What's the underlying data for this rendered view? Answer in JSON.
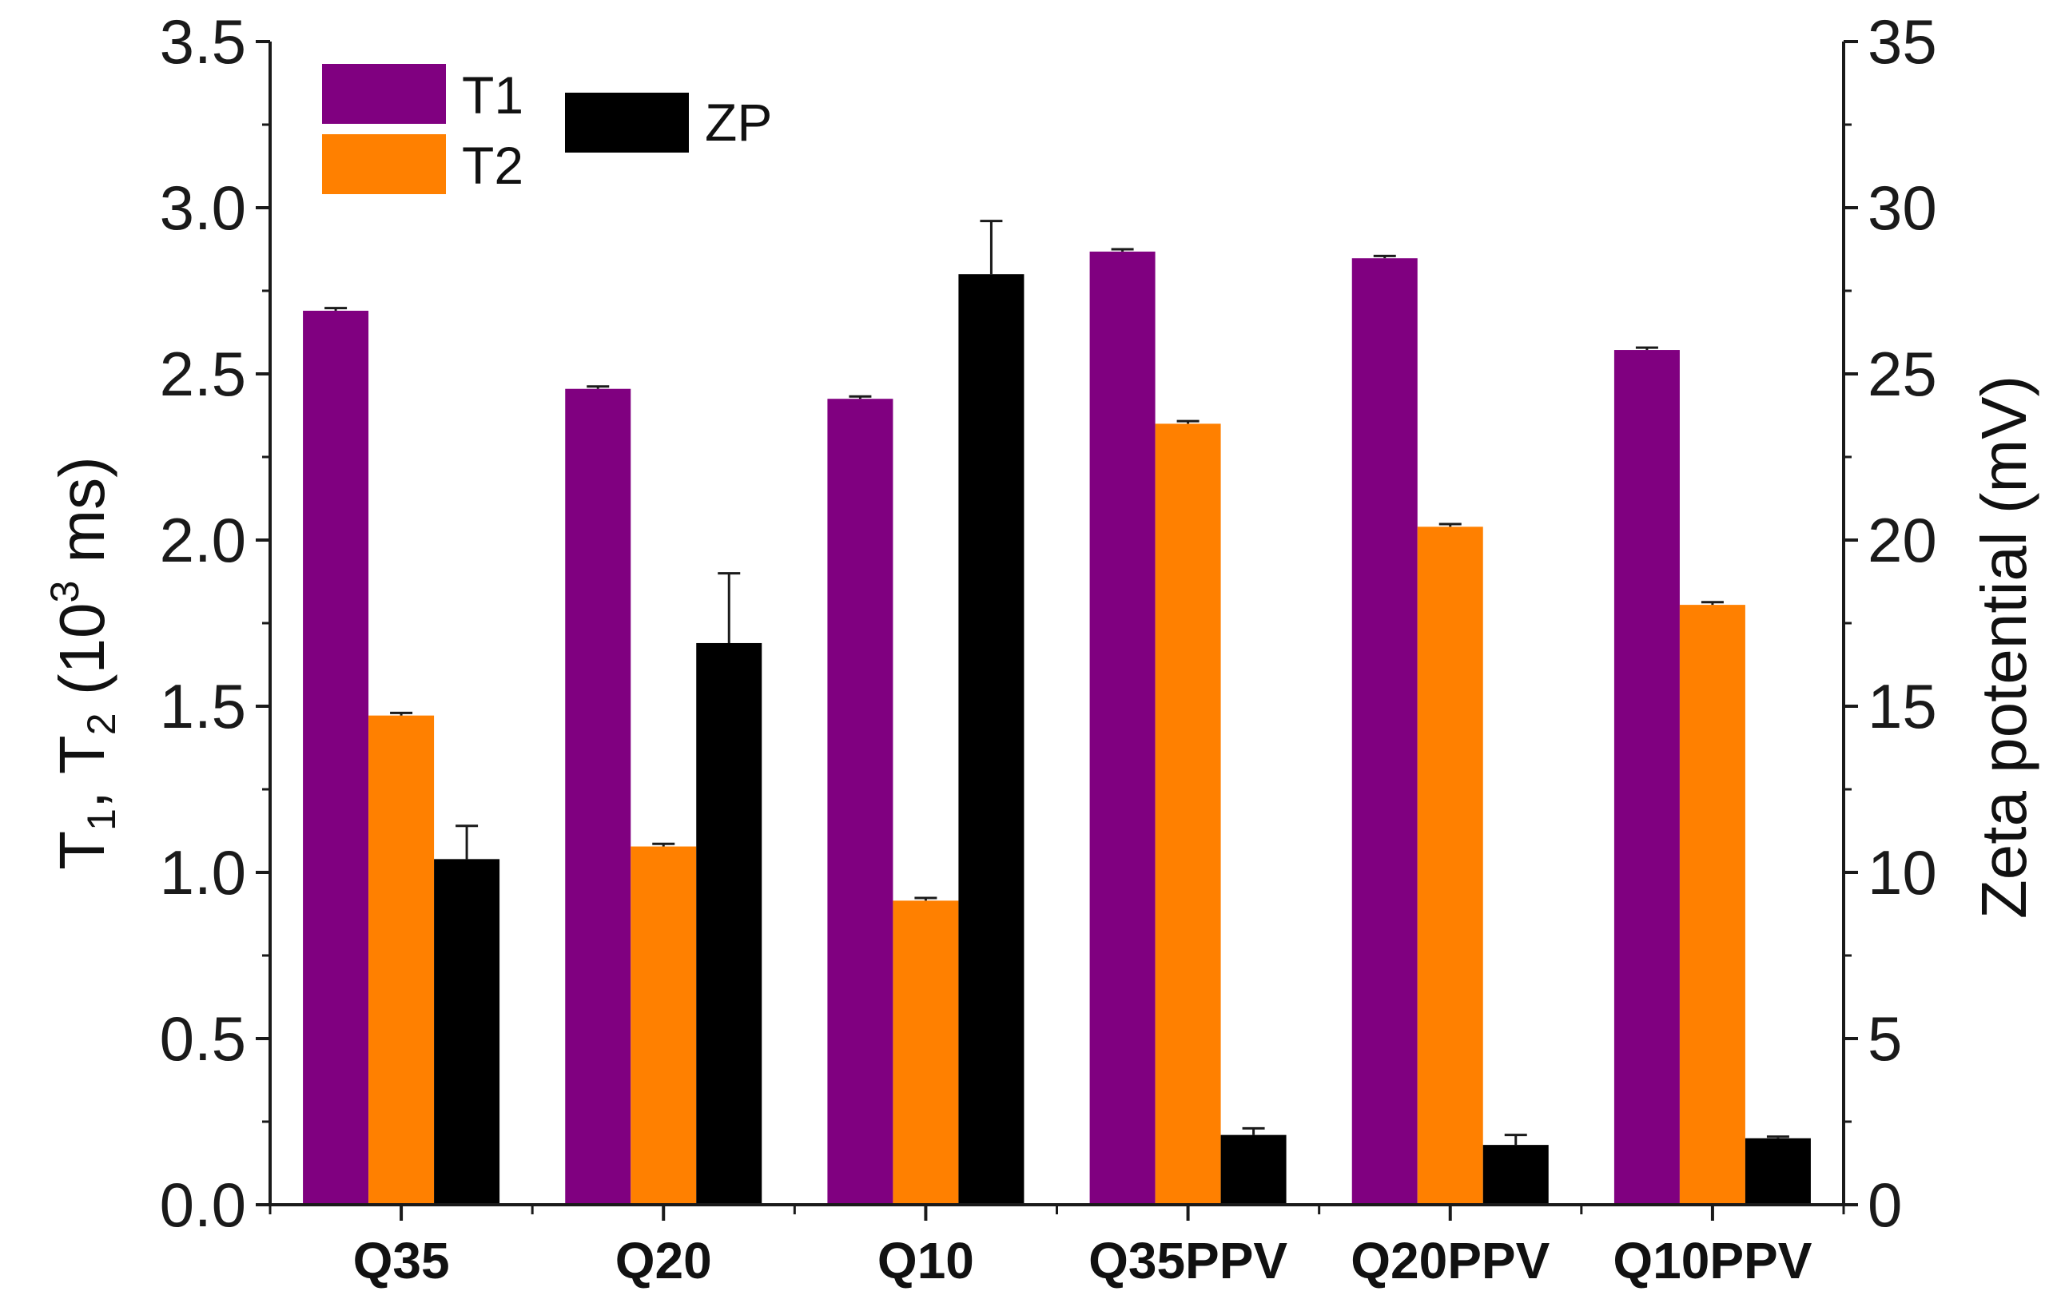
{
  "chart_data": {
    "type": "bar",
    "categories": [
      "Q35",
      "Q20",
      "Q10",
      "Q35PPV",
      "Q20PPV",
      "Q10PPV"
    ],
    "series": [
      {
        "name": "T1",
        "axis": "left",
        "color": "#800080",
        "values": [
          2.69,
          2.455,
          2.425,
          2.868,
          2.848,
          2.572
        ],
        "errors": [
          0.008,
          0.007,
          0.007,
          0.007,
          0.007,
          0.007
        ]
      },
      {
        "name": "T2",
        "axis": "left",
        "color": "#ff8000",
        "values": [
          1.472,
          1.078,
          0.915,
          2.35,
          2.04,
          1.805
        ],
        "errors": [
          0.008,
          0.008,
          0.008,
          0.008,
          0.008,
          0.008
        ]
      },
      {
        "name": "ZP",
        "axis": "right",
        "color": "#000000",
        "values": [
          10.4,
          16.9,
          28.0,
          2.1,
          1.8,
          2.0
        ],
        "errors": [
          1.0,
          2.1,
          1.6,
          0.2,
          0.3,
          0.05
        ]
      }
    ],
    "ylabel_left_parts": {
      "base1": "T",
      "sub1": "1",
      "sep": ", ",
      "base2": "T",
      "sub2": "2",
      "open": " (10",
      "sup": "3",
      "close": " ms)"
    },
    "ylabel_right": "Zeta potential (mV)",
    "xlabel": "",
    "ylim_left": [
      0,
      3.5
    ],
    "ylim_right": [
      0,
      35
    ],
    "yticks_left": [
      "0.0",
      "0.5",
      "1.0",
      "1.5",
      "2.0",
      "2.5",
      "3.0",
      "3.5"
    ],
    "yticks_right": [
      "0",
      "5",
      "10",
      "15",
      "20",
      "25",
      "30",
      "35"
    ],
    "legend": [
      "T1",
      "T2",
      "ZP"
    ],
    "legend_position": "top-left",
    "grid": false
  }
}
